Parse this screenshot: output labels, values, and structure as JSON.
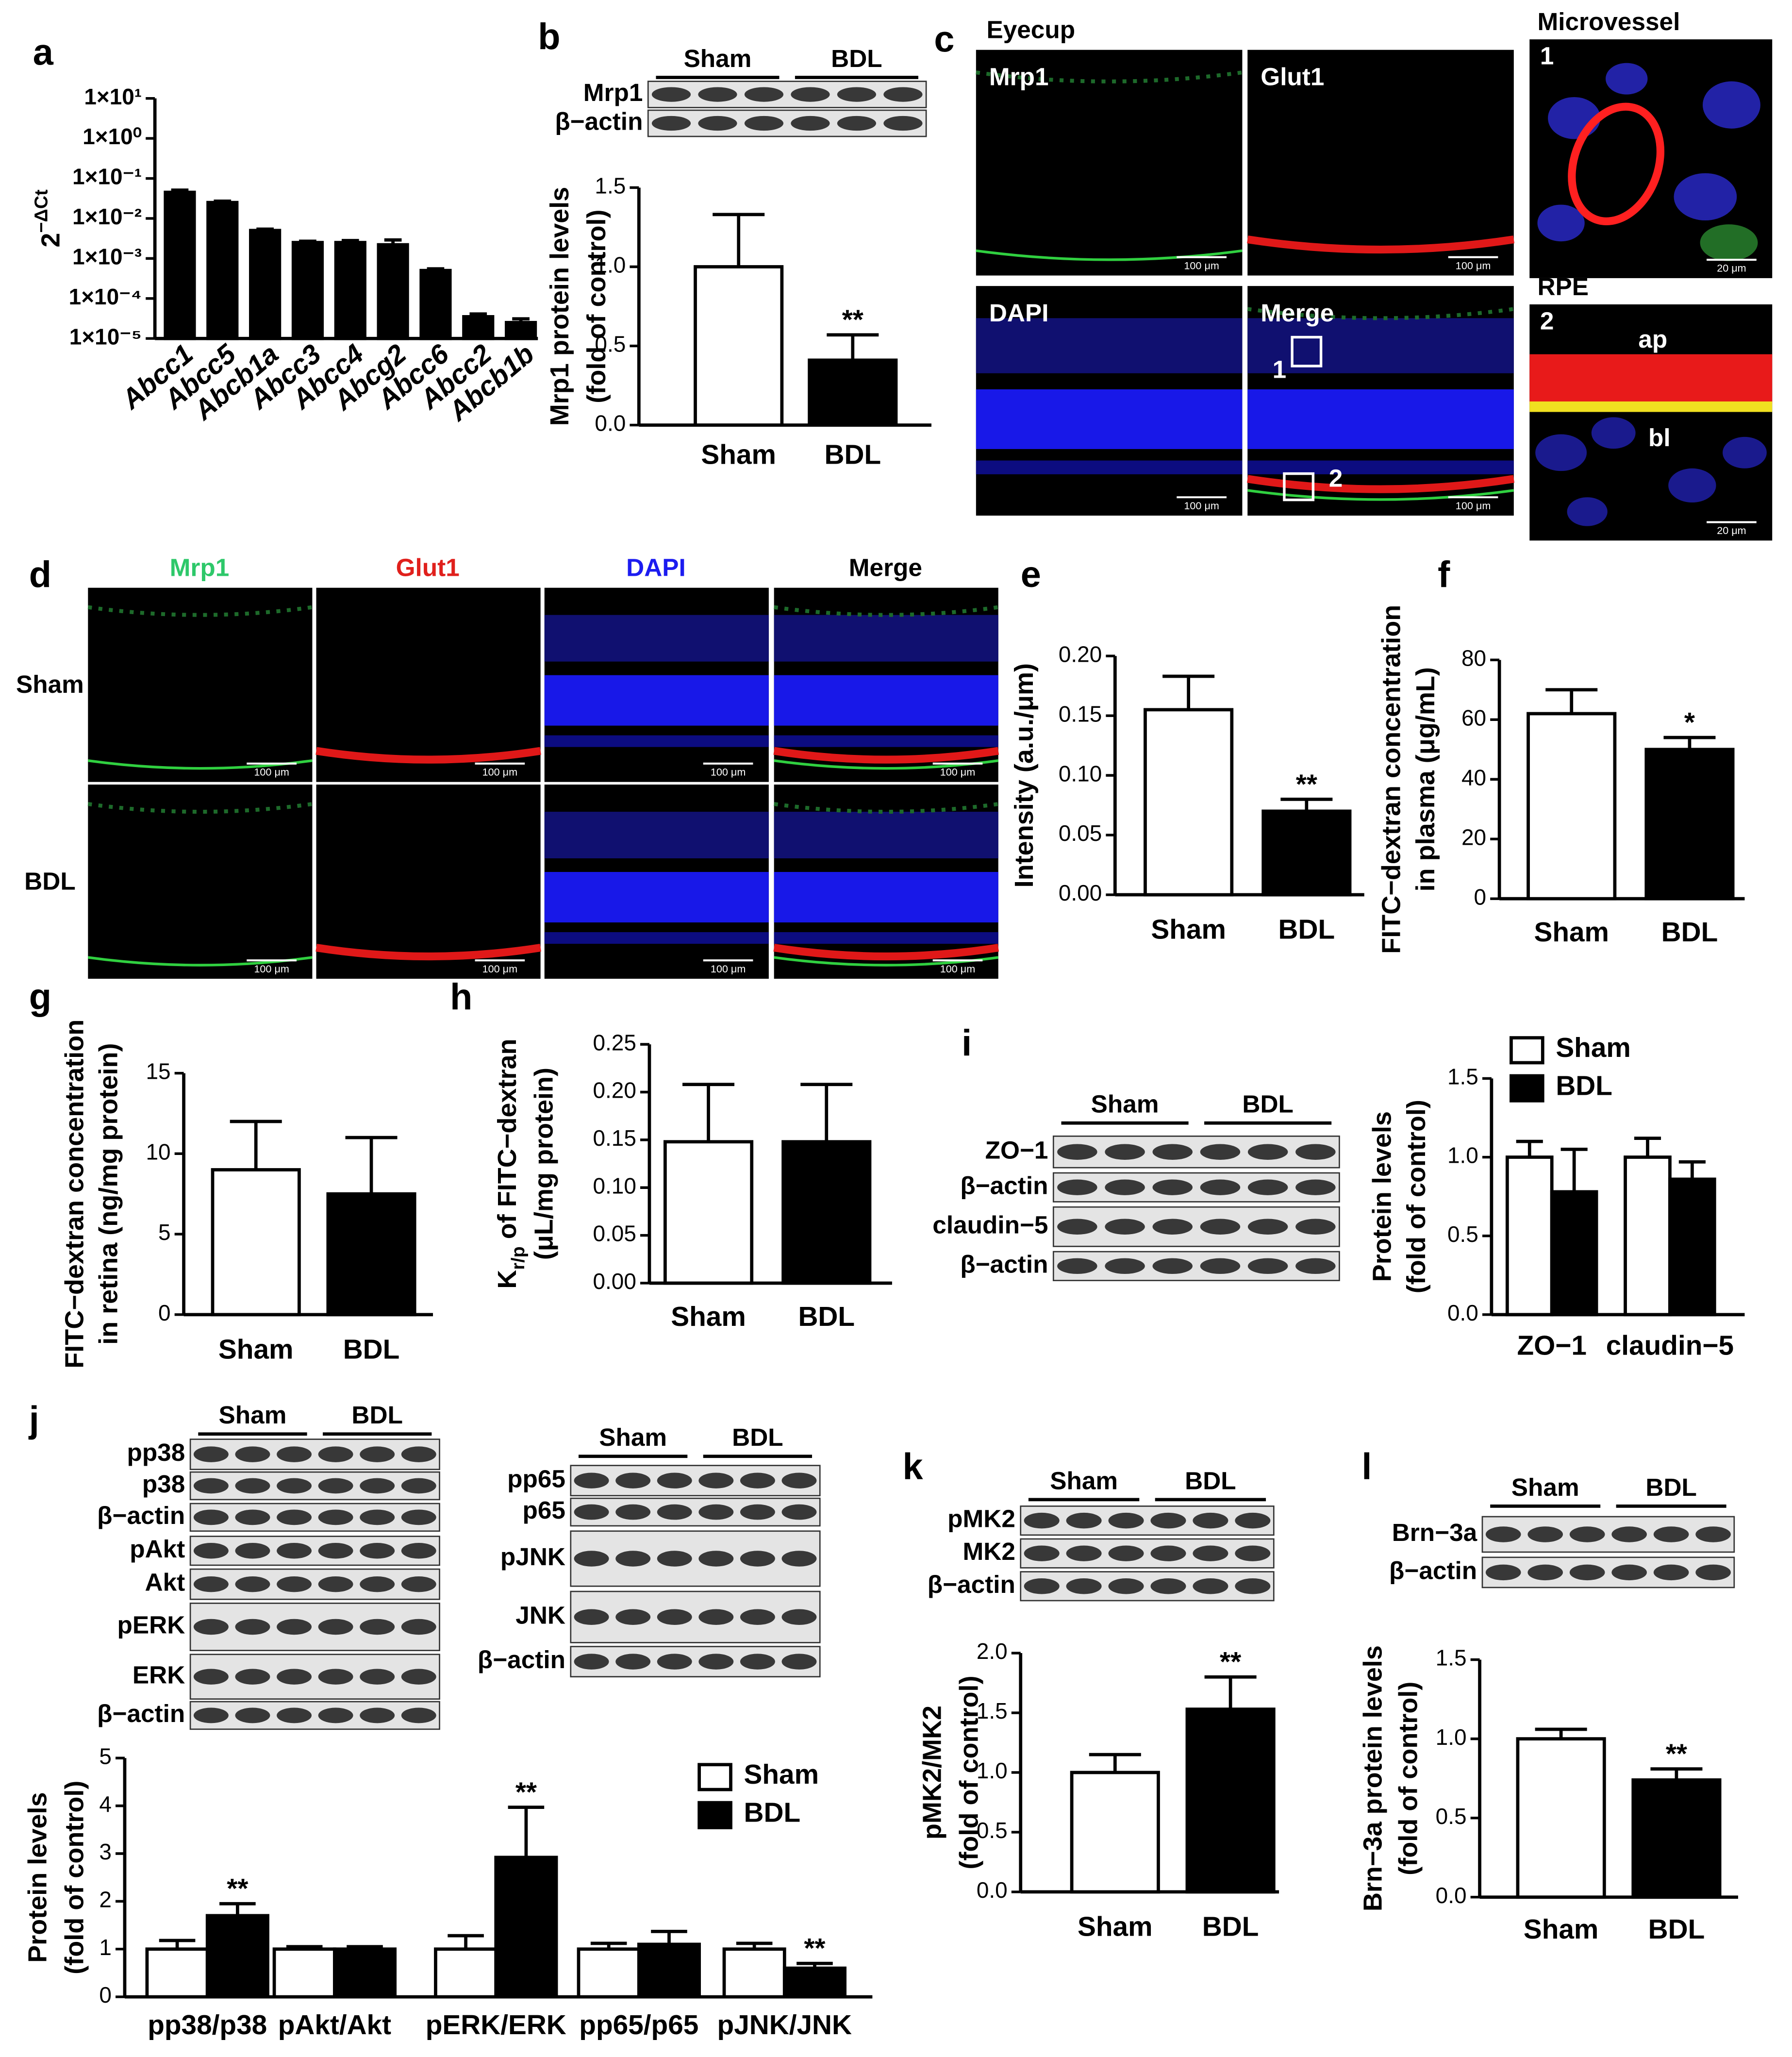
{
  "chart_data": [
    {
      "type": "bar",
      "label": "a",
      "log": true,
      "ylabel": [
        [
          {
            "text": "2"
          },
          {
            "text": "−ΔCt",
            "sup": true
          }
        ]
      ],
      "categories": [
        "Abcc1",
        "Abcc5",
        "Abcb1a",
        "Abcc3",
        "Abcc4",
        "Abcg2",
        "Abcc6",
        "Abcc2",
        "Abcb1b"
      ],
      "values": [
        0.045,
        0.025,
        0.005,
        0.0025,
        0.0025,
        0.0022,
        0.0005,
        3.5e-05,
        2.5e-05
      ],
      "errors": [
        0.006,
        0.002,
        0.0004,
        0.0002,
        0.0003,
        0.0007,
        5e-05,
        6e-06,
        6e-06
      ],
      "color": "#000000",
      "ylim": [
        1e-05,
        10
      ],
      "yticks": [
        {
          "value": 1e-05,
          "label": "1×10⁻⁵"
        },
        {
          "value": 0.0001,
          "label": "1×10⁻⁴"
        },
        {
          "value": 0.001,
          "label": "1×10⁻³"
        },
        {
          "value": 0.01,
          "label": "1×10⁻²"
        },
        {
          "value": 0.1,
          "label": "1×10⁻¹"
        },
        {
          "value": 1,
          "label": "1×10⁰"
        },
        {
          "value": 10,
          "label": "1×10¹"
        }
      ]
    },
    {
      "type": "bar",
      "label": "b",
      "ylabel": [
        "Mrp1 protein levels",
        "(fold of control)"
      ],
      "categories": [
        "Sham",
        "BDL"
      ],
      "values": [
        1.0,
        0.41
      ],
      "errors": [
        0.33,
        0.16
      ],
      "colors": [
        "#ffffff",
        "#000000"
      ],
      "significance": [
        {
          "index": 1,
          "label": "**"
        }
      ],
      "ylim": [
        0,
        1.5
      ],
      "yticks": [
        {
          "value": 0,
          "label": "0.0"
        },
        0.5,
        {
          "value": 1,
          "label": "1.0"
        },
        1.5
      ]
    },
    {
      "type": "bar",
      "label": "e",
      "ylabel": [
        "Intensity (a.u./μm)"
      ],
      "categories": [
        "Sham",
        "BDL"
      ],
      "values": [
        0.155,
        0.07
      ],
      "errors": [
        0.028,
        0.01
      ],
      "colors": [
        "#ffffff",
        "#000000"
      ],
      "significance": [
        {
          "index": 1,
          "label": "**"
        }
      ],
      "ylim": [
        0,
        0.2
      ],
      "yticks": [
        {
          "value": 0,
          "label": "0.00"
        },
        0.05,
        {
          "value": 0.1,
          "label": "0.10"
        },
        0.15,
        {
          "value": 0.2,
          "label": "0.20"
        }
      ]
    },
    {
      "type": "bar",
      "label": "f",
      "ylabel": [
        "FITC−dextran concentration",
        "in plasma (μg/mL)"
      ],
      "categories": [
        "Sham",
        "BDL"
      ],
      "values": [
        62,
        50
      ],
      "errors": [
        8,
        4
      ],
      "colors": [
        "#ffffff",
        "#000000"
      ],
      "significance": [
        {
          "index": 1,
          "label": "*"
        }
      ],
      "ylim": [
        0,
        80
      ],
      "yticks": [
        0,
        20,
        40,
        60,
        80
      ]
    },
    {
      "type": "bar",
      "label": "g",
      "ylabel": [
        "FITC−dextran concentration",
        "in retina (ng/mg protein)"
      ],
      "categories": [
        "Sham",
        "BDL"
      ],
      "values": [
        9,
        7.5
      ],
      "errors": [
        3,
        3.5
      ],
      "colors": [
        "#ffffff",
        "#000000"
      ],
      "ylim": [
        0,
        15
      ],
      "yticks": [
        0,
        5,
        10,
        15
      ]
    },
    {
      "type": "bar",
      "label": "h",
      "ylabel": [
        [
          {
            "text": "K"
          },
          {
            "text": "r/p",
            "sub": true
          },
          {
            "text": " of FITC−dextran"
          }
        ],
        "(μL/mg protein)"
      ],
      "categories": [
        "Sham",
        "BDL"
      ],
      "values": [
        0.148,
        0.148
      ],
      "errors": [
        0.06,
        0.06
      ],
      "colors": [
        "#ffffff",
        "#000000"
      ],
      "ylim": [
        0,
        0.25
      ],
      "yticks": [
        {
          "value": 0,
          "label": "0.00"
        },
        0.05,
        {
          "value": 0.1,
          "label": "0.10"
        },
        0.15,
        {
          "value": 0.2,
          "label": "0.20"
        },
        0.25
      ]
    },
    {
      "type": "bar",
      "label": "i",
      "ylabel": [
        "Protein levels",
        "(fold of control)"
      ],
      "categories": [
        "ZO−1",
        "claudin−5"
      ],
      "series": [
        {
          "name": "Sham",
          "color": "#ffffff",
          "values": [
            1.0,
            1.0
          ],
          "errors": [
            0.1,
            0.12
          ]
        },
        {
          "name": "BDL",
          "color": "#000000",
          "values": [
            0.78,
            0.86
          ],
          "errors": [
            0.27,
            0.11
          ]
        }
      ],
      "ylim": [
        0,
        1.5
      ],
      "yticks": [
        {
          "value": 0,
          "label": "0.0"
        },
        0.5,
        {
          "value": 1,
          "label": "1.0"
        },
        1.5
      ]
    },
    {
      "type": "bar",
      "label": "j",
      "ylabel": [
        "Protein levels",
        "(fold of control)"
      ],
      "categories": [
        "pp38/p38",
        "pAkt/Akt",
        "pERK/ERK",
        "pp65/p65",
        "pJNK/JNK"
      ],
      "series": [
        {
          "name": "Sham",
          "color": "#ffffff",
          "values": [
            1,
            1,
            1,
            1,
            1
          ],
          "errors": [
            0.18,
            0.05,
            0.28,
            0.12,
            0.12
          ]
        },
        {
          "name": "BDL",
          "color": "#000000",
          "values": [
            1.7,
            1.0,
            2.92,
            1.1,
            0.6
          ],
          "errors": [
            0.25,
            0.05,
            1.05,
            0.27,
            0.1
          ]
        }
      ],
      "significance": [
        {
          "series": 1,
          "index": 0,
          "label": "**"
        },
        {
          "series": 1,
          "index": 2,
          "label": "**"
        },
        {
          "series": 1,
          "index": 4,
          "label": "**"
        }
      ],
      "ylim": [
        0,
        5
      ],
      "yticks": [
        0,
        1,
        2,
        3,
        4,
        5
      ]
    },
    {
      "type": "bar",
      "label": "k",
      "ylabel": [
        "pMK2/MK2",
        "(fold of control)"
      ],
      "categories": [
        "Sham",
        "BDL"
      ],
      "values": [
        1.0,
        1.53
      ],
      "errors": [
        0.15,
        0.27
      ],
      "colors": [
        "#ffffff",
        "#000000"
      ],
      "significance": [
        {
          "index": 1,
          "label": "**"
        }
      ],
      "ylim": [
        0,
        2
      ],
      "yticks": [
        {
          "value": 0,
          "label": "0.0"
        },
        0.5,
        {
          "value": 1,
          "label": "1.0"
        },
        1.5,
        {
          "value": 2,
          "label": "2.0"
        }
      ]
    },
    {
      "type": "bar",
      "label": "l",
      "ylabel": [
        "Brn−3a protein levels",
        "(fold of control)"
      ],
      "categories": [
        "Sham",
        "BDL"
      ],
      "values": [
        1.0,
        0.74
      ],
      "errors": [
        0.06,
        0.07
      ],
      "colors": [
        "#ffffff",
        "#000000"
      ],
      "significance": [
        {
          "index": 1,
          "label": "**"
        }
      ],
      "ylim": [
        0,
        1.5
      ],
      "yticks": [
        {
          "value": 0,
          "label": "0.0"
        },
        0.5,
        {
          "value": 1,
          "label": "1.0"
        },
        1.5
      ]
    }
  ],
  "blots": [
    {
      "groups": [
        "Sham",
        "BDL"
      ],
      "rows": [
        "Mrp1",
        "β−actin"
      ]
    },
    {
      "groups": [
        "Sham",
        "BDL"
      ],
      "rows": [
        "ZO−1",
        "β−actin",
        "claudin−5",
        "β−actin"
      ]
    },
    {
      "groups": [
        "Sham",
        "BDL"
      ],
      "rows": [
        "pp38",
        "p38",
        "β−actin",
        "pAkt",
        "Akt",
        "pERK",
        "ERK",
        "β−actin"
      ]
    },
    {
      "groups": [
        "Sham",
        "BDL"
      ],
      "rows": [
        "pp65",
        "p65",
        "pJNK",
        "JNK",
        "β−actin"
      ]
    },
    {
      "groups": [
        "Sham",
        "BDL"
      ],
      "rows": [
        "pMK2",
        "MK2",
        "β−actin"
      ]
    },
    {
      "groups": [
        "Sham",
        "BDL"
      ],
      "rows": [
        "Brn−3a",
        "β−actin"
      ]
    }
  ],
  "micrographs": {
    "c": {
      "label": "c",
      "title": "Eyecup",
      "panels": [
        "Mrp1",
        "Glut1",
        "DAPI",
        "Merge"
      ],
      "insets": [
        {
          "title": "Microvessel",
          "number": "1"
        },
        {
          "title": "RPE",
          "number": "2",
          "annotations": [
            "ap",
            "bl"
          ]
        }
      ],
      "scale_bar": "100 μm",
      "inset_scale_bar": "20 μm"
    },
    "d": {
      "label": "d",
      "columns": [
        {
          "name": "Mrp1",
          "color": "#2ec86a"
        },
        {
          "name": "Glut1",
          "color": "#e0201c"
        },
        {
          "name": "DAPI",
          "color": "#1c1cf0"
        },
        {
          "name": "Merge",
          "color": "#000000"
        }
      ],
      "rows": [
        "Sham",
        "BDL"
      ],
      "scale_bar": "100 μm"
    }
  }
}
